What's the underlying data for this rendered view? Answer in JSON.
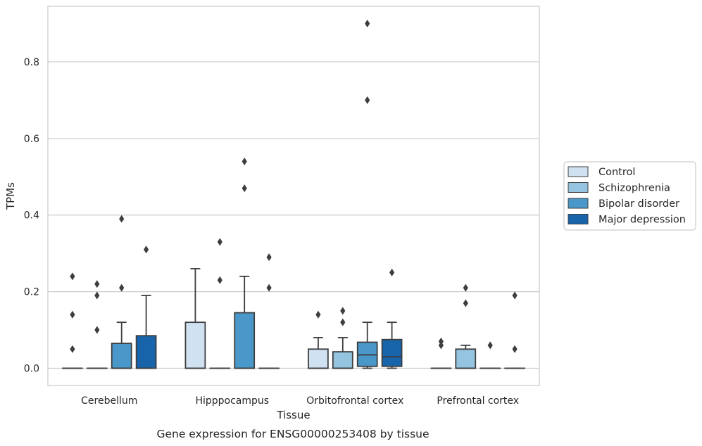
{
  "chart_data": {
    "type": "box",
    "title": "",
    "xlabel": "Tissue",
    "ylabel": "TPMs",
    "caption": "Gene expression for ENSG00000253408 by tissue",
    "ylim": [
      -0.045,
      0.945
    ],
    "yticks": [
      "0.0",
      "0.2",
      "0.4",
      "0.6",
      "0.8"
    ],
    "grid": "horizontal",
    "legend_position": "right",
    "categories": [
      "Cerebellum",
      "Hipppocampus",
      "Orbitofrontal cortex",
      "Prefrontal cortex"
    ],
    "colors": [
      "#d0e1f2",
      "#94c4df",
      "#4a98c9",
      "#1764ab"
    ],
    "series": [
      {
        "name": "Control",
        "boxes": [
          {
            "q1": 0,
            "median": 0,
            "q3": 0,
            "whislo": 0,
            "whishi": 0,
            "fliers": [
              0.05,
              0.14,
              0.24
            ]
          },
          {
            "q1": 0,
            "median": 0,
            "q3": 0.12,
            "whislo": 0,
            "whishi": 0.26,
            "fliers": []
          },
          {
            "q1": 0,
            "median": 0,
            "q3": 0.05,
            "whislo": 0,
            "whishi": 0.08,
            "fliers": [
              0.14
            ]
          },
          {
            "q1": 0,
            "median": 0,
            "q3": 0,
            "whislo": 0,
            "whishi": 0,
            "fliers": [
              0.06,
              0.07
            ]
          }
        ]
      },
      {
        "name": "Schizophrenia",
        "boxes": [
          {
            "q1": 0,
            "median": 0,
            "q3": 0,
            "whislo": 0,
            "whishi": 0,
            "fliers": [
              0.1,
              0.19,
              0.22
            ]
          },
          {
            "q1": 0,
            "median": 0,
            "q3": 0,
            "whislo": 0,
            "whishi": 0,
            "fliers": [
              0.23,
              0.33
            ]
          },
          {
            "q1": 0,
            "median": 0,
            "q3": 0.043,
            "whislo": 0,
            "whishi": 0.08,
            "fliers": [
              0.12,
              0.15
            ]
          },
          {
            "q1": 0,
            "median": 0,
            "q3": 0.05,
            "whislo": 0,
            "whishi": 0.06,
            "fliers": [
              0.17,
              0.21
            ]
          }
        ]
      },
      {
        "name": "Bipolar disorder",
        "boxes": [
          {
            "q1": 0,
            "median": 0,
            "q3": 0.065,
            "whislo": 0,
            "whishi": 0.12,
            "fliers": [
              0.21,
              0.39
            ]
          },
          {
            "q1": 0,
            "median": 0,
            "q3": 0.145,
            "whislo": 0,
            "whishi": 0.24,
            "fliers": [
              0.47,
              0.54
            ]
          },
          {
            "q1": 0.005,
            "median": 0.035,
            "q3": 0.068,
            "whislo": 0,
            "whishi": 0.12,
            "fliers": [
              0.7,
              0.9
            ]
          },
          {
            "q1": 0,
            "median": 0,
            "q3": 0,
            "whislo": 0,
            "whishi": 0,
            "fliers": [
              0.06
            ]
          }
        ]
      },
      {
        "name": "Major depression",
        "boxes": [
          {
            "q1": 0,
            "median": 0,
            "q3": 0.085,
            "whislo": 0,
            "whishi": 0.19,
            "fliers": [
              0.31
            ]
          },
          {
            "q1": 0,
            "median": 0,
            "q3": 0,
            "whislo": 0,
            "whishi": 0,
            "fliers": [
              0.21,
              0.29
            ]
          },
          {
            "q1": 0.005,
            "median": 0.03,
            "q3": 0.075,
            "whislo": 0,
            "whishi": 0.12,
            "fliers": [
              0.25
            ]
          },
          {
            "q1": 0,
            "median": 0,
            "q3": 0,
            "whislo": 0,
            "whishi": 0,
            "fliers": [
              0.05,
              0.19
            ]
          }
        ]
      }
    ]
  }
}
